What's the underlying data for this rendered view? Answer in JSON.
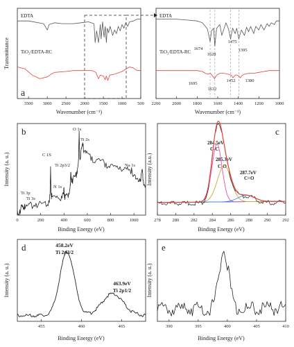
{
  "colors": {
    "edta": "#555555",
    "tio2": "#e0443a",
    "axis": "#222222",
    "grid_dash": "#999999"
  },
  "chart_data": [
    {
      "id": "a_full",
      "type": "line",
      "panel_label": "a",
      "xlabel": "Wavenumber (cm⁻¹)",
      "ylabel": "Transmittance",
      "xlim": [
        3800,
        500
      ],
      "xticks": [
        3500,
        3000,
        2500,
        2000,
        1500,
        1000,
        500
      ],
      "legend": [
        "EDTA",
        "TiO₂/EDTA-RC"
      ],
      "series": [
        {
          "name": "EDTA",
          "x": [
            3800,
            3500,
            3100,
            3000,
            2950,
            2800,
            2600,
            2300,
            2100,
            1900,
            1750,
            1720,
            1680,
            1630,
            1580,
            1560,
            1520,
            1480,
            1450,
            1420,
            1395,
            1360,
            1320,
            1250,
            1200,
            1150,
            1100,
            1050,
            1000,
            950,
            900,
            850,
            800,
            700,
            600,
            500
          ],
          "y": [
            0.86,
            0.86,
            0.83,
            0.76,
            0.82,
            0.84,
            0.83,
            0.83,
            0.84,
            0.85,
            0.83,
            0.62,
            0.75,
            0.62,
            0.82,
            0.66,
            0.85,
            0.68,
            0.8,
            0.62,
            0.78,
            0.73,
            0.8,
            0.7,
            0.76,
            0.72,
            0.8,
            0.75,
            0.82,
            0.78,
            0.84,
            0.8,
            0.85,
            0.86,
            0.88,
            0.88
          ]
        },
        {
          "name": "TiO₂/EDTA-RC",
          "x": [
            3800,
            3600,
            3400,
            3200,
            3000,
            2900,
            2800,
            2500,
            2300,
            2100,
            1900,
            1800,
            1700,
            1632,
            1580,
            1500,
            1452,
            1420,
            1380,
            1330,
            1200,
            1000,
            800,
            700,
            600,
            500
          ],
          "y": [
            0.35,
            0.33,
            0.26,
            0.22,
            0.24,
            0.27,
            0.29,
            0.3,
            0.31,
            0.31,
            0.31,
            0.31,
            0.29,
            0.22,
            0.26,
            0.25,
            0.21,
            0.25,
            0.2,
            0.26,
            0.27,
            0.3,
            0.35,
            0.34,
            0.31,
            0.31
          ]
        }
      ]
    },
    {
      "id": "a_zoom",
      "type": "line",
      "xlabel": "Wavenumber (cm⁻¹)",
      "xlim": [
        2200,
        1000
      ],
      "xticks": [
        2200,
        2000,
        1800,
        1600,
        1400,
        1200,
        1000
      ],
      "legend": [
        "EDTA",
        "TiO₂/EDTA-RC"
      ],
      "annotations": [
        "1674",
        "1628",
        "1475",
        "1395",
        "1695",
        "1632",
        "1452",
        "1380"
      ],
      "dashed_lines": [
        1674,
        1628,
        1475,
        1395
      ],
      "series": [
        {
          "name": "EDTA",
          "x": [
            2200,
            2000,
            1900,
            1800,
            1750,
            1720,
            1700,
            1674,
            1660,
            1640,
            1628,
            1610,
            1580,
            1560,
            1520,
            1495,
            1475,
            1455,
            1430,
            1415,
            1395,
            1370,
            1340,
            1320,
            1300,
            1280,
            1250,
            1230,
            1200,
            1180,
            1150,
            1120,
            1100,
            1080,
            1050,
            1030,
            1000
          ],
          "y": [
            0.88,
            0.88,
            0.87,
            0.86,
            0.84,
            0.8,
            0.77,
            0.63,
            0.75,
            0.78,
            0.58,
            0.78,
            0.82,
            0.7,
            0.84,
            0.77,
            0.66,
            0.78,
            0.72,
            0.78,
            0.66,
            0.76,
            0.7,
            0.79,
            0.74,
            0.8,
            0.72,
            0.8,
            0.76,
            0.82,
            0.76,
            0.83,
            0.8,
            0.84,
            0.82,
            0.86,
            0.86
          ]
        },
        {
          "name": "TiO₂/EDTA-RC",
          "x": [
            2200,
            2000,
            1900,
            1800,
            1750,
            1720,
            1695,
            1670,
            1650,
            1632,
            1610,
            1580,
            1540,
            1500,
            1470,
            1452,
            1430,
            1410,
            1395,
            1380,
            1360,
            1340,
            1300,
            1250,
            1200,
            1150,
            1100,
            1050,
            1000
          ],
          "y": [
            0.31,
            0.31,
            0.31,
            0.31,
            0.3,
            0.28,
            0.27,
            0.28,
            0.25,
            0.22,
            0.26,
            0.28,
            0.28,
            0.27,
            0.26,
            0.23,
            0.26,
            0.26,
            0.25,
            0.23,
            0.26,
            0.27,
            0.28,
            0.28,
            0.29,
            0.3,
            0.31,
            0.31,
            0.31
          ]
        }
      ]
    },
    {
      "id": "b",
      "type": "line",
      "panel_label": "b",
      "xlabel": "Binding Energy (eV)",
      "ylabel": "Intensity (a. u.)",
      "xlim": [
        0,
        1100
      ],
      "xticks": [
        0,
        200,
        400,
        600,
        800,
        1000
      ],
      "annotations": [
        {
          "text": "Ti 3p",
          "x": 38
        },
        {
          "text": "Ti 3s",
          "x": 62
        },
        {
          "text": "C 1S",
          "x": 285
        },
        {
          "text": "N 1s",
          "x": 400
        },
        {
          "text": "Ti 2p3/2",
          "x": 458
        },
        {
          "text": "O 1s",
          "x": 530
        },
        {
          "text": "Ti 2s",
          "x": 564
        },
        {
          "text": "Na 1s",
          "x": 1072
        }
      ],
      "series": [
        {
          "name": "survey",
          "x": [
            0,
            20,
            38,
            50,
            62,
            80,
            120,
            160,
            200,
            240,
            270,
            280,
            285,
            290,
            300,
            340,
            380,
            395,
            400,
            405,
            420,
            440,
            455,
            458,
            462,
            470,
            490,
            510,
            525,
            530,
            535,
            545,
            555,
            564,
            572,
            600,
            640,
            680,
            720,
            760,
            800,
            840,
            880,
            920,
            960,
            980,
            1000,
            1020,
            1050,
            1060,
            1072,
            1080,
            1100
          ],
          "y": [
            0.05,
            0.06,
            0.1,
            0.08,
            0.12,
            0.1,
            0.13,
            0.13,
            0.14,
            0.15,
            0.16,
            0.22,
            0.53,
            0.24,
            0.2,
            0.21,
            0.21,
            0.23,
            0.3,
            0.23,
            0.22,
            0.24,
            0.35,
            0.47,
            0.42,
            0.4,
            0.42,
            0.48,
            0.62,
            0.92,
            0.64,
            0.7,
            0.76,
            0.78,
            0.7,
            0.68,
            0.64,
            0.61,
            0.6,
            0.57,
            0.55,
            0.54,
            0.53,
            0.52,
            0.5,
            0.52,
            0.44,
            0.4,
            0.4,
            0.42,
            0.5,
            0.38,
            0.33
          ]
        }
      ]
    },
    {
      "id": "c",
      "type": "line",
      "panel_label": "c",
      "xlabel": "Binding Energy (eV)",
      "ylabel": "Intensity (a.u.)",
      "xlim": [
        278,
        292
      ],
      "xticks": [
        278,
        280,
        282,
        284,
        286,
        288,
        290,
        292
      ],
      "annotations": [
        "284.5eV",
        "C-C",
        "285.3eV",
        "C-O",
        "287.7eV",
        "C=O"
      ],
      "components": [
        {
          "name": "C-C",
          "center": 284.5,
          "height": 0.72,
          "width": 0.55,
          "color": "#e44fa6"
        },
        {
          "name": "C-O",
          "center": 285.3,
          "height": 0.45,
          "width": 0.75,
          "color": "#c9a93a"
        },
        {
          "name": "C=O",
          "center": 287.7,
          "height": 0.08,
          "width": 0.9,
          "color": "#3a8fd8"
        }
      ],
      "envelope_color": "#e0443a",
      "raw_color": "#222222",
      "background_color": "#2b54c8"
    },
    {
      "id": "d",
      "type": "line",
      "panel_label": "d",
      "xlabel": "Binding Energy (eV)",
      "ylabel": "Intensity (a. u.)",
      "xlim": [
        452,
        468
      ],
      "xticks": [
        455,
        460,
        465
      ],
      "annotations": [
        "458.2eV",
        "Ti 2p3/2",
        "463.9eV",
        "Ti 2p1/2"
      ],
      "peaks": [
        {
          "center": 458.2,
          "height": 0.78,
          "width": 0.9
        },
        {
          "center": 463.9,
          "height": 0.27,
          "width": 1.3
        }
      ],
      "baseline": 0.08
    },
    {
      "id": "e",
      "type": "line",
      "panel_label": "e",
      "xlabel": "Binding Energy (eV)",
      "ylabel": "Intensity (a. u.)",
      "xlim": [
        388,
        410
      ],
      "xticks": [
        390,
        395,
        400,
        405,
        410
      ],
      "peaks": [
        {
          "center": 399.4,
          "height": 0.72,
          "width": 0.8
        }
      ],
      "baseline": 0.2
    }
  ]
}
